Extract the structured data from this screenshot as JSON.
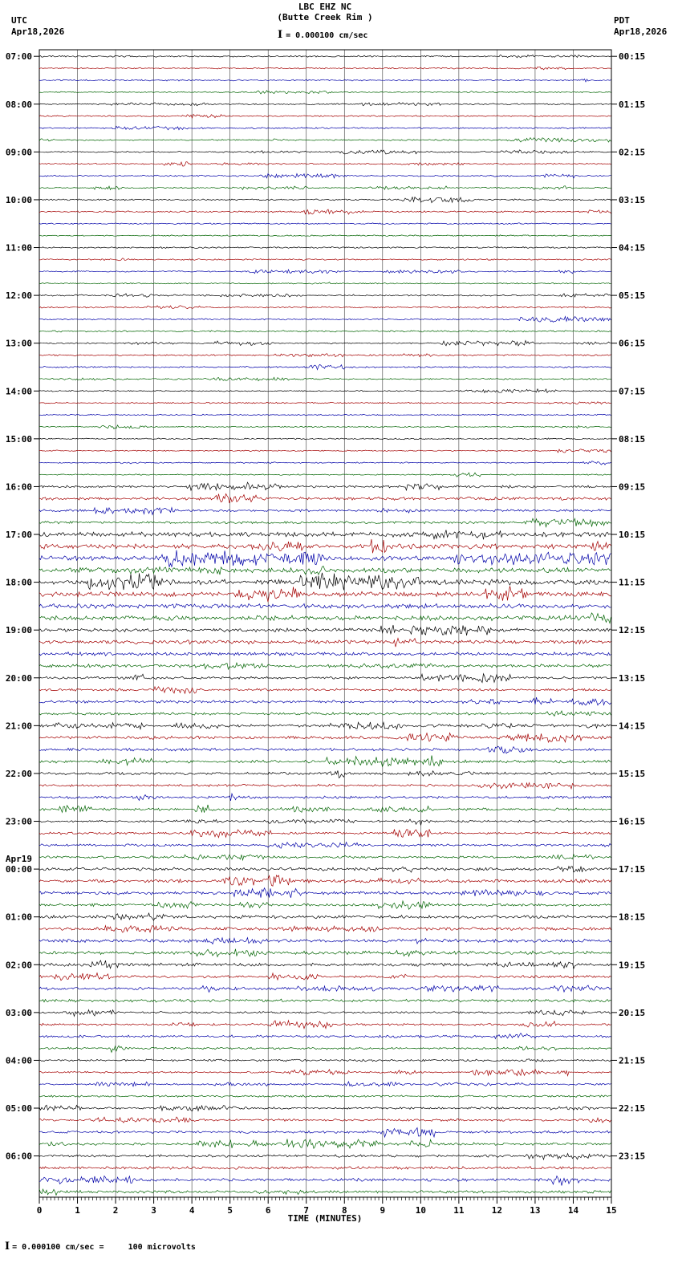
{
  "header": {
    "station": "LBC EHZ NC",
    "location": "(Butte Creek Rim )",
    "scale_label": "= 0.000100 cm/sec",
    "scale_icon": "I",
    "left_tz": "UTC",
    "left_date": "Apr18,2026",
    "right_tz": "PDT",
    "right_date": "Apr18,2026"
  },
  "footer": {
    "ibeam": "I",
    "note": "= 0.000100 cm/sec =     100 microvolts"
  },
  "chart_data": {
    "type": "line",
    "title": "LBC EHZ NC (Butte Creek Rim ) 24-hour helicorder seismogram",
    "xlabel": "TIME (MINUTES)",
    "ylabel": "",
    "xlim": [
      0,
      15
    ],
    "x_ticks": [
      "0",
      "1",
      "2",
      "3",
      "4",
      "5",
      "6",
      "7",
      "8",
      "9",
      "10",
      "11",
      "12",
      "13",
      "14",
      "15"
    ],
    "grid": true,
    "minutes_per_line": 15,
    "lines_per_hour": 4,
    "trace_colors": [
      "#000000",
      "#a40000",
      "#0000a8",
      "#006400"
    ],
    "legend_position": "none",
    "rows": [
      {
        "utc": "07:00",
        "pdt": "00:15",
        "amplitude": 0.9
      },
      {
        "utc": "08:00",
        "pdt": "01:15",
        "amplitude": 0.9
      },
      {
        "utc": "09:00",
        "pdt": "02:15",
        "amplitude": 0.9
      },
      {
        "utc": "10:00",
        "pdt": "03:15",
        "amplitude": 0.9
      },
      {
        "utc": "11:00",
        "pdt": "04:15",
        "amplitude": 0.9
      },
      {
        "utc": "12:00",
        "pdt": "05:15",
        "amplitude": 1.0
      },
      {
        "utc": "13:00",
        "pdt": "06:15",
        "amplitude": 0.9
      },
      {
        "utc": "14:00",
        "pdt": "07:15",
        "amplitude": 0.8
      },
      {
        "utc": "15:00",
        "pdt": "08:15",
        "amplitude": 0.8
      },
      {
        "utc": "16:00",
        "pdt": "09:15",
        "amplitude": 1.7
      },
      {
        "utc": "17:00",
        "pdt": "10:15",
        "amplitude": 3.0
      },
      {
        "utc": "18:00",
        "pdt": "11:15",
        "amplitude": 3.1
      },
      {
        "utc": "19:00",
        "pdt": "12:15",
        "amplitude": 2.2
      },
      {
        "utc": "20:00",
        "pdt": "13:15",
        "amplitude": 1.7
      },
      {
        "utc": "21:00",
        "pdt": "14:15",
        "amplitude": 1.8
      },
      {
        "utc": "22:00",
        "pdt": "15:15",
        "amplitude": 1.5
      },
      {
        "utc": "23:00",
        "pdt": "16:15",
        "amplitude": 1.5
      },
      {
        "utc": "00:00",
        "pdt": "17:15",
        "amplitude": 1.9,
        "date_label": "Apr19"
      },
      {
        "utc": "01:00",
        "pdt": "18:15",
        "amplitude": 1.9
      },
      {
        "utc": "02:00",
        "pdt": "19:15",
        "amplitude": 1.9
      },
      {
        "utc": "03:00",
        "pdt": "20:15",
        "amplitude": 1.5
      },
      {
        "utc": "04:00",
        "pdt": "21:15",
        "amplitude": 1.3
      },
      {
        "utc": "05:00",
        "pdt": "22:15",
        "amplitude": 1.5
      },
      {
        "utc": "06:00",
        "pdt": "23:15",
        "amplitude": 1.9
      }
    ]
  }
}
